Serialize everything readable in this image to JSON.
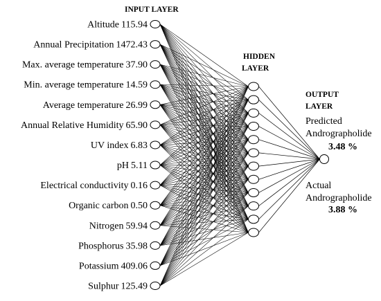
{
  "titles": {
    "input": "INPUT LAYER",
    "hidden": [
      "HIDDEN",
      "LAYER"
    ],
    "output": [
      "OUTPUT",
      "LAYER"
    ]
  },
  "inputs": [
    {
      "name": "Altitude",
      "value": "115.94"
    },
    {
      "name": "Annual Precipitation",
      "value": "1472.43"
    },
    {
      "name": "Max. average temperature",
      "value": "37.90"
    },
    {
      "name": "Min. average temperature",
      "value": "14.59"
    },
    {
      "name": "Average temperature",
      "value": "26.99"
    },
    {
      "name": "Annual Relative Humidity",
      "value": "65.90"
    },
    {
      "name": "UV index",
      "value": "6.83"
    },
    {
      "name": "pH",
      "value": "5.11"
    },
    {
      "name": "Electrical conductivity",
      "value": "0.16"
    },
    {
      "name": "Organic carbon",
      "value": "0.50"
    },
    {
      "name": "Nitrogen",
      "value": "59.94"
    },
    {
      "name": "Phosphorus",
      "value": "35.98"
    },
    {
      "name": "Potassium",
      "value": "409.06"
    },
    {
      "name": "Sulphur",
      "value": "125.49"
    }
  ],
  "hidden_neuron_count": 12,
  "output": {
    "predicted_label": [
      "Predicted",
      "Andrographolide"
    ],
    "predicted_value": "3.48 %",
    "actual_label": [
      "Actual",
      "Andrographolide"
    ],
    "actual_value": "3.88 %"
  }
}
